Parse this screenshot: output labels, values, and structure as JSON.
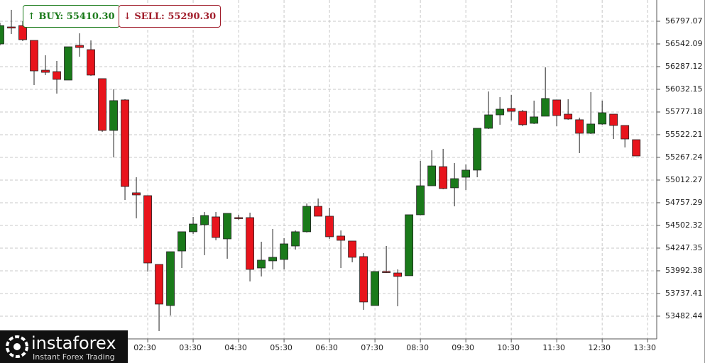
{
  "chart_data": {
    "type": "candlestick",
    "ylim": [
      53227,
      57036
    ],
    "yticks": [
      56797.07,
      56542.09,
      56287.12,
      56032.15,
      55777.18,
      55522.21,
      55267.24,
      55012.27,
      54757.29,
      54502.32,
      54247.35,
      53992.38,
      53737.41,
      53482.44
    ],
    "xlim": [
      0,
      57.8
    ],
    "xticks": [
      {
        "value": 13,
        "label": "02:30"
      },
      {
        "value": 17,
        "label": "03:30"
      },
      {
        "value": 21,
        "label": "04:30"
      },
      {
        "value": 25,
        "label": "05:30"
      },
      {
        "value": 29,
        "label": "06:30"
      },
      {
        "value": 33,
        "label": "07:30"
      },
      {
        "value": 37,
        "label": "08:30"
      },
      {
        "value": 41,
        "label": "09:30"
      },
      {
        "value": 45,
        "label": "10:30"
      },
      {
        "value": 49,
        "label": "11:30"
      },
      {
        "value": 53,
        "label": "12:30"
      },
      {
        "value": 57,
        "label": "13:30"
      }
    ],
    "grid": true,
    "up_color": "#1a7a1a",
    "down_color": "#e8141c",
    "open": [
      56542,
      56733,
      56749,
      56582,
      56247,
      56231,
      56136,
      56526,
      56478,
      56152,
      55570,
      55913,
      54869,
      54837,
      54064,
      53602,
      54215,
      54431,
      54510,
      54598,
      54351,
      54590,
      54590,
      54024,
      54104,
      54120,
      54271,
      54431,
      54717,
      54606,
      54383,
      54327,
      54152,
      53602,
      53984,
      53968,
      53937,
      54622,
      54948,
      55163,
      54925,
      55044,
      55124,
      55594,
      55745,
      55817,
      55785,
      55650,
      55730,
      55913,
      55753,
      55690,
      55538,
      55642,
      55753,
      55626,
      55466
    ],
    "high": [
      56781,
      56925,
      56797,
      56582,
      56415,
      56351,
      56510,
      56662,
      56582,
      56152,
      56032,
      55921,
      55044,
      54837,
      54064,
      54207,
      54431,
      54598,
      54653,
      54653,
      54638,
      54622,
      54646,
      54319,
      54462,
      54359,
      54446,
      54749,
      54805,
      54701,
      54446,
      54327,
      54192,
      53984,
      54271,
      54008,
      54622,
      55227,
      55347,
      55363,
      55203,
      55187,
      55594,
      56008,
      55944,
      55968,
      55801,
      55905,
      56279,
      55913,
      55921,
      55714,
      56000,
      55905,
      55753,
      55626,
      55466
    ],
    "low": [
      56526,
      56654,
      56574,
      56080,
      56192,
      55984,
      56136,
      56399,
      56184,
      55554,
      55267,
      54789,
      54582,
      53984,
      53315,
      53490,
      54024,
      54407,
      54168,
      54335,
      54128,
      54566,
      53873,
      53929,
      54008,
      54008,
      54231,
      54423,
      54606,
      54351,
      54024,
      54088,
      53554,
      53602,
      53968,
      53594,
      53937,
      54622,
      54948,
      54909,
      54717,
      54901,
      55044,
      55586,
      55634,
      55682,
      55618,
      55642,
      55730,
      55618,
      55690,
      55315,
      55530,
      55634,
      55474,
      55379,
      55283
    ],
    "close": [
      56749,
      56725,
      56590,
      56239,
      56223,
      56144,
      56510,
      56502,
      56192,
      55570,
      55905,
      54940,
      54845,
      54080,
      53618,
      54207,
      54431,
      54518,
      54614,
      54367,
      54638,
      54582,
      54008,
      54112,
      54144,
      54295,
      54431,
      54717,
      54606,
      54375,
      54335,
      54144,
      53642,
      53984,
      53976,
      53929,
      54622,
      54948,
      55171,
      54917,
      55028,
      55124,
      55594,
      55745,
      55809,
      55785,
      55634,
      55722,
      55929,
      55737,
      55698,
      55538,
      55642,
      55769,
      55626,
      55474,
      55283
    ],
    "buttons": [
      {
        "label": "BUY: 55410.30"
      },
      {
        "label": "SELL: 55290.30"
      }
    ],
    "logo": {
      "name": "instaforex",
      "tagline": "Instant Forex Trading"
    }
  }
}
